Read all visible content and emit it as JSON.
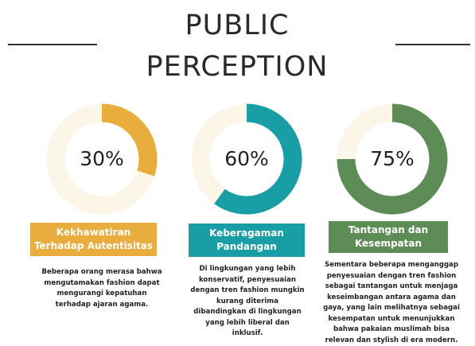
{
  "title": "PUBLIC PERCEPTION",
  "chart_data": [
    {
      "type": "donut",
      "title": "Kekhawatiran Terhadap Autentisitas",
      "values": [
        30
      ],
      "value_labels": [
        "30%"
      ],
      "color": "#e8ad3c",
      "description": "Beberapa orang merasa bahwa mengutamakan fashion dapat mengurangi kepatuhan terhadap ajaran agama."
    },
    {
      "type": "donut",
      "title": "Keberagaman Pandangan",
      "values": [
        60
      ],
      "value_labels": [
        "60%"
      ],
      "color": "#1a9ea6",
      "description": "Di lingkungan yang lebih konservatif, penyesuaian dengan tren fashion mungkin kurang diterima dibandingkan di lingkungan yang lebih liberal dan inklusif."
    },
    {
      "type": "donut",
      "title": "Tantangan dan Kesempatan",
      "values": [
        75
      ],
      "value_labels": [
        "75%"
      ],
      "color": "#5e8c56",
      "description": "Sementara beberapa menganggap penyesuaian dengan tren fashion sebagai tantangan untuk menjaga keseimbangan antara agama dan gaya, yang lain melihatnya sebagai kesempatan untuk menunjukkan bahwa pakaian muslimah bisa relevan dan stylish di era modern."
    }
  ]
}
